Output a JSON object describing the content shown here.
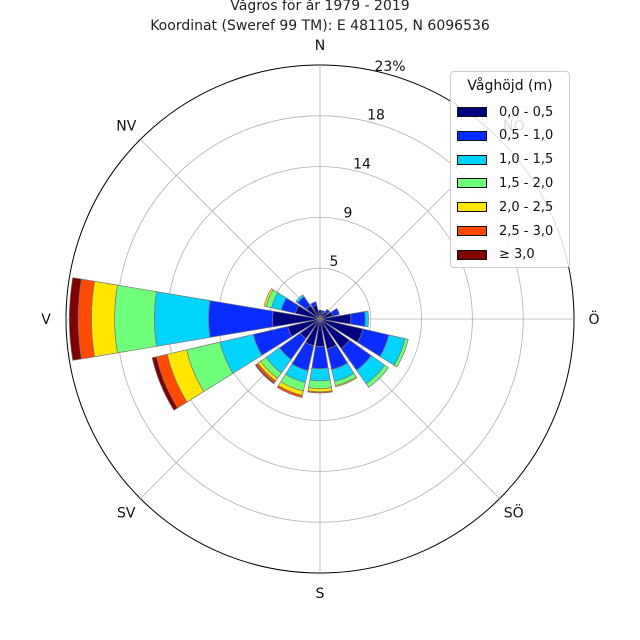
{
  "title": "Vågros för år 1979 - 2019",
  "subtitle": "Koordinat (Sweref 99 TM): E 481105, N 6096536",
  "chart_data": {
    "type": "wind-rose",
    "direction_labels": [
      "N",
      "NV",
      "V",
      "SV",
      "S",
      "SÖ",
      "Ö",
      "NÖ"
    ],
    "radial_ticks": [
      "5",
      "9",
      "14",
      "18",
      "23%"
    ],
    "radial_tick_values": [
      4.6,
      9.2,
      13.8,
      18.4,
      23.0
    ],
    "rmax": 23.0,
    "legend_title": "Våghöjd (m)",
    "bins": [
      {
        "label": "0,0 - 0,5",
        "color": "#000080"
      },
      {
        "label": "0,5 - 1,0",
        "color": "#0a2cff"
      },
      {
        "label": "1,0 - 1,5",
        "color": "#00d4ff"
      },
      {
        "label": "1,5 - 2,0",
        "color": "#70ff7a"
      },
      {
        "label": "2,0 - 2,5",
        "color": "#ffe600"
      },
      {
        "label": "2,5 - 3,0",
        "color": "#ff4a00"
      },
      {
        "label": "≥ 3,0",
        "color": "#800000"
      }
    ],
    "sectors": [
      {
        "bearing": 0,
        "values": [
          0.8,
          0.0,
          0.0,
          0.0,
          0.0,
          0.0,
          0.0
        ]
      },
      {
        "bearing": 22.5,
        "values": [
          0.6,
          0.2,
          0.0,
          0.0,
          0.0,
          0.0,
          0.0
        ]
      },
      {
        "bearing": 45,
        "values": [
          0.8,
          0.3,
          0.0,
          0.0,
          0.0,
          0.0,
          0.0
        ]
      },
      {
        "bearing": 67.5,
        "values": [
          1.2,
          0.6,
          0.0,
          0.0,
          0.0,
          0.0,
          0.0
        ]
      },
      {
        "bearing": 90,
        "values": [
          2.8,
          1.3,
          0.3,
          0.0,
          0.0,
          0.0,
          0.0
        ]
      },
      {
        "bearing": 112.5,
        "values": [
          4.0,
          2.4,
          1.5,
          0.3,
          0.0,
          0.0,
          0.0
        ]
      },
      {
        "bearing": 135,
        "values": [
          3.3,
          2.4,
          1.5,
          0.4,
          0.0,
          0.0,
          0.0
        ]
      },
      {
        "bearing": 157.5,
        "values": [
          2.8,
          1.9,
          1.1,
          0.4,
          0.1,
          0.0,
          0.0
        ]
      },
      {
        "bearing": 180,
        "values": [
          2.5,
          2.0,
          1.1,
          0.7,
          0.3,
          0.1,
          0.0
        ]
      },
      {
        "bearing": 202.5,
        "values": [
          2.5,
          2.3,
          1.1,
          0.8,
          0.4,
          0.2,
          0.0
        ]
      },
      {
        "bearing": 225,
        "values": [
          2.2,
          2.3,
          1.5,
          0.6,
          0.3,
          0.2,
          0.1
        ]
      },
      {
        "bearing": 247.5,
        "values": [
          3.0,
          3.2,
          3.1,
          3.1,
          1.8,
          1.0,
          0.4
        ]
      },
      {
        "bearing": 270,
        "values": [
          4.3,
          5.8,
          4.9,
          3.6,
          2.1,
          1.2,
          0.8
        ]
      },
      {
        "bearing": 292.5,
        "values": [
          2.3,
          1.3,
          0.9,
          0.5,
          0.2,
          0.0,
          0.0
        ]
      },
      {
        "bearing": 315,
        "values": [
          1.5,
          1.0,
          0.2,
          0.0,
          0.0,
          0.0,
          0.0
        ]
      },
      {
        "bearing": 337.5,
        "values": [
          1.3,
          0.3,
          0.0,
          0.0,
          0.0,
          0.0,
          0.0
        ]
      }
    ],
    "grid": true,
    "legend_position": "top-right"
  }
}
